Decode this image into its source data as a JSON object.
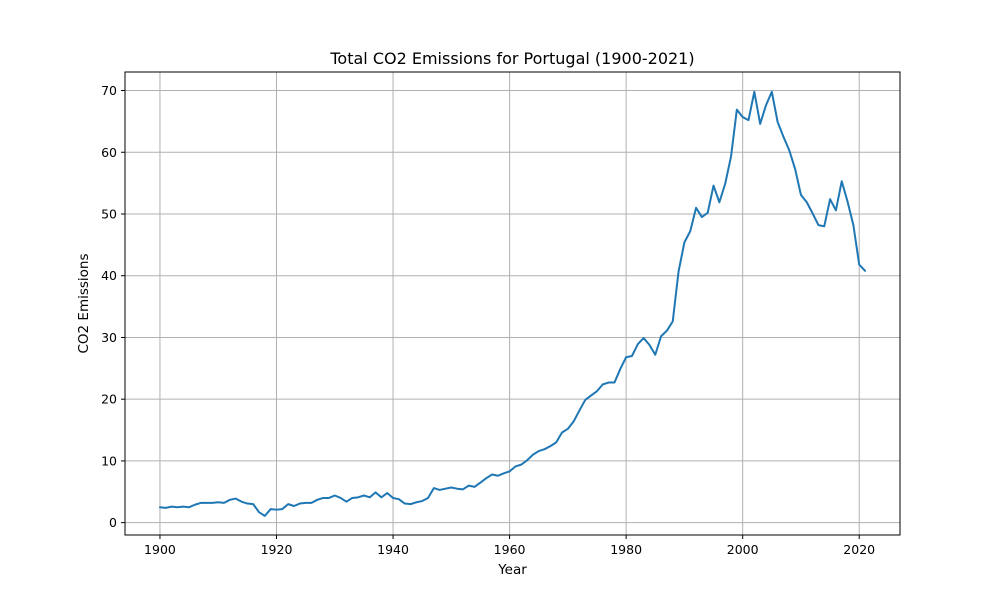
{
  "chart_data": {
    "type": "line",
    "title": "Total CO2 Emissions for Portugal (1900-2021)",
    "xlabel": "Year",
    "ylabel": "CO2 Emissions",
    "xlim": [
      1894,
      2027
    ],
    "ylim": [
      -2.0,
      73.0
    ],
    "xticks": [
      1900,
      1920,
      1940,
      1960,
      1980,
      2000,
      2020
    ],
    "yticks": [
      0,
      10,
      20,
      30,
      40,
      50,
      60,
      70
    ],
    "grid": true,
    "colors": {
      "line": "#1f77b4",
      "grid": "#b0b0b0",
      "axes": "#000000"
    },
    "series": [
      {
        "x": [
          1900,
          1901,
          1902,
          1903,
          1904,
          1905,
          1906,
          1907,
          1908,
          1909,
          1910,
          1911,
          1912,
          1913,
          1914,
          1915,
          1916,
          1917,
          1918,
          1919,
          1920,
          1921,
          1922,
          1923,
          1924,
          1925,
          1926,
          1927,
          1928,
          1929,
          1930,
          1931,
          1932,
          1933,
          1934,
          1935,
          1936,
          1937,
          1938,
          1939,
          1940,
          1941,
          1942,
          1943,
          1944,
          1945,
          1946,
          1947,
          1948,
          1949,
          1950,
          1951,
          1952,
          1953,
          1954,
          1955,
          1956,
          1957,
          1958,
          1959,
          1960,
          1961,
          1962,
          1963,
          1964,
          1965,
          1966,
          1967,
          1968,
          1969,
          1970,
          1971,
          1972,
          1973,
          1974,
          1975,
          1976,
          1977,
          1978,
          1979,
          1980,
          1981,
          1982,
          1983,
          1984,
          1985,
          1986,
          1987,
          1988,
          1989,
          1990,
          1991,
          1992,
          1993,
          1994,
          1995,
          1996,
          1997,
          1998,
          1999,
          2000,
          2001,
          2002,
          2003,
          2004,
          2005,
          2006,
          2007,
          2008,
          2009,
          2010,
          2011,
          2012,
          2013,
          2014,
          2015,
          2016,
          2017,
          2018,
          2019,
          2020,
          2021
        ],
        "y": [
          2.5,
          2.4,
          2.6,
          2.5,
          2.6,
          2.5,
          2.9,
          3.2,
          3.2,
          3.2,
          3.3,
          3.2,
          3.7,
          3.9,
          3.4,
          3.1,
          3.0,
          1.7,
          1.1,
          2.2,
          2.1,
          2.2,
          3.0,
          2.7,
          3.1,
          3.2,
          3.2,
          3.7,
          4.0,
          4.0,
          4.4,
          4.0,
          3.4,
          4.0,
          4.1,
          4.4,
          4.1,
          4.9,
          4.1,
          4.8,
          4.0,
          3.8,
          3.1,
          3.0,
          3.3,
          3.5,
          4.0,
          5.6,
          5.3,
          5.5,
          5.7,
          5.5,
          5.4,
          6.0,
          5.8,
          6.5,
          7.2,
          7.8,
          7.6,
          8.0,
          8.3,
          9.1,
          9.4,
          10.1,
          11.0,
          11.6,
          11.9,
          12.4,
          13.0,
          14.6,
          15.2,
          16.4,
          18.2,
          19.9,
          20.6,
          21.3,
          22.4,
          22.7,
          22.7,
          24.9,
          26.8,
          27.0,
          28.9,
          29.9,
          28.8,
          27.2,
          30.2,
          31.1,
          32.6,
          40.7,
          45.4,
          47.2,
          51.0,
          49.5,
          50.2,
          54.6,
          51.9,
          54.9,
          59.3,
          66.9,
          65.7,
          65.2,
          69.8,
          64.6,
          67.6,
          69.8,
          64.9,
          62.5,
          60.3,
          57.3,
          53.1,
          51.9,
          50.1,
          48.2,
          48.0,
          52.4,
          50.6,
          55.3,
          52.0,
          48.2,
          41.8,
          40.8
        ]
      }
    ]
  }
}
